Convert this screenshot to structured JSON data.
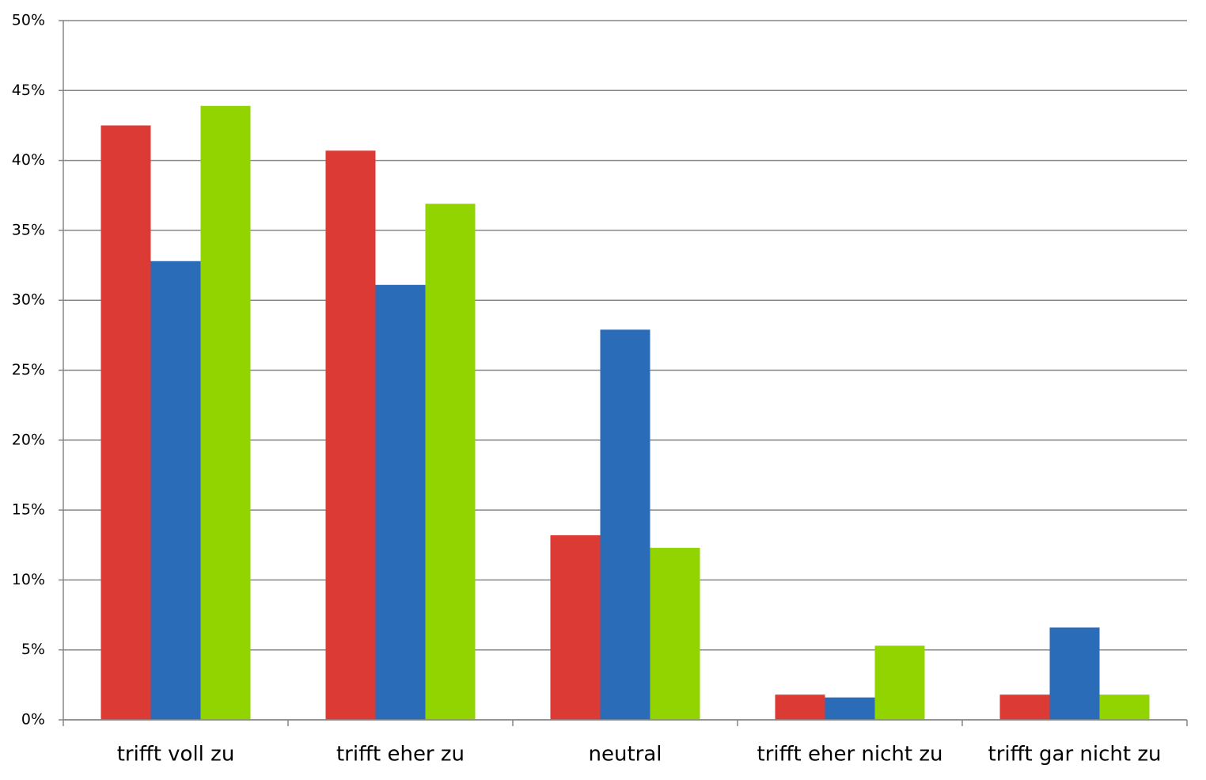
{
  "chart_data": {
    "type": "bar",
    "categories": [
      "trifft voll zu",
      "trifft eher zu",
      "neutral",
      "trifft eher nicht zu",
      "trifft gar nicht zu"
    ],
    "series": [
      {
        "color": "#dc3a34",
        "values": [
          42.5,
          40.7,
          13.2,
          1.8,
          1.8
        ]
      },
      {
        "color": "#2b6cb8",
        "values": [
          32.8,
          31.1,
          27.9,
          1.6,
          6.6
        ]
      },
      {
        "color": "#92d400",
        "values": [
          43.9,
          36.9,
          12.3,
          5.3,
          1.8
        ]
      }
    ],
    "ylim": [
      0,
      50
    ],
    "yticks": [
      {
        "value": 0,
        "label": "0%"
      },
      {
        "value": 5,
        "label": "5%"
      },
      {
        "value": 10,
        "label": "10%"
      },
      {
        "value": 15,
        "label": "15%"
      },
      {
        "value": 20,
        "label": "20%"
      },
      {
        "value": 25,
        "label": "25%"
      },
      {
        "value": 30,
        "label": "30%"
      },
      {
        "value": 35,
        "label": "35%"
      },
      {
        "value": 40,
        "label": "40%"
      },
      {
        "value": 45,
        "label": "45%"
      },
      {
        "value": 50,
        "label": "50%"
      }
    ],
    "grid": true
  }
}
